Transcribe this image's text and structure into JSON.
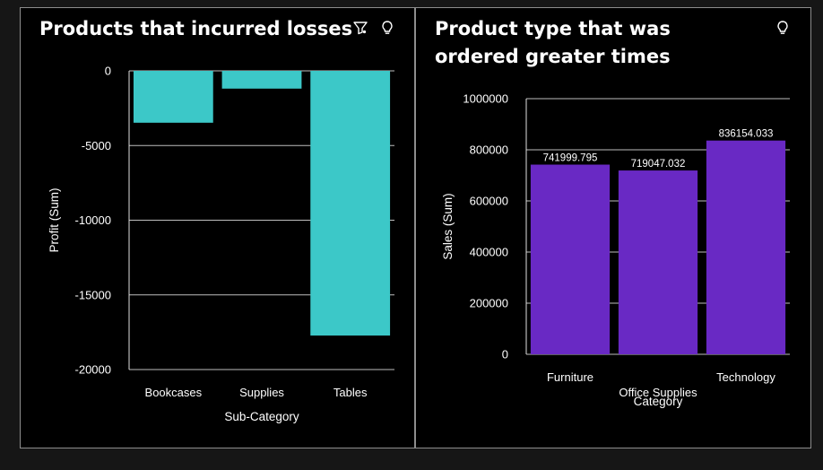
{
  "panels": [
    {
      "title": "Products that incurred losses",
      "tools": [
        "filter-icon",
        "lightbulb-icon"
      ]
    },
    {
      "title": "Product type that was ordered greater times",
      "tools": [
        "lightbulb-icon"
      ]
    }
  ],
  "colors": {
    "loss_bar": "#3cc8c8",
    "sales_bar": "#6929c4",
    "grid": "#e0e0e0"
  },
  "chart_data": [
    {
      "type": "bar",
      "title": "Products that incurred losses",
      "categories": [
        "Bookcases",
        "Supplies",
        "Tables"
      ],
      "values": [
        -3473,
        -1189,
        -17725
      ],
      "xlabel": "Sub-Category",
      "ylabel": "Profit (Sum)",
      "ylim": [
        -20000,
        0
      ],
      "yticks": [
        0,
        -5000,
        -10000,
        -15000,
        -20000
      ],
      "grid": true,
      "legend": "none"
    },
    {
      "type": "bar",
      "title": "Product type that was ordered greater times",
      "categories": [
        "Furniture",
        "Office Supplies",
        "Technology"
      ],
      "values": [
        741999.795,
        719047.032,
        836154.033
      ],
      "data_labels": [
        "741999.795",
        "719047.032",
        "836154.033"
      ],
      "xlabel": "Category",
      "ylabel": "Sales (Sum)",
      "ylim": [
        0,
        1000000
      ],
      "yticks": [
        0,
        200000,
        400000,
        600000,
        800000,
        1000000
      ],
      "grid": true,
      "legend": "none"
    }
  ]
}
